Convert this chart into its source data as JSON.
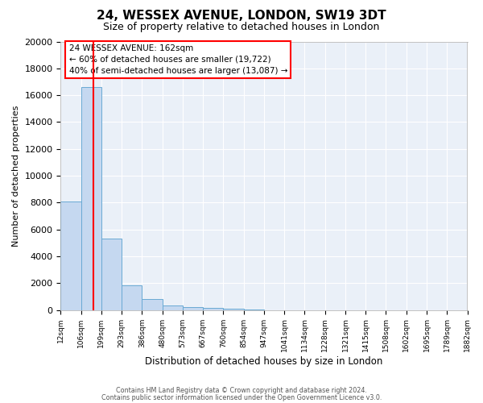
{
  "title": "24, WESSEX AVENUE, LONDON, SW19 3DT",
  "subtitle": "Size of property relative to detached houses in London",
  "xlabel": "Distribution of detached houses by size in London",
  "ylabel": "Number of detached properties",
  "bin_labels": [
    "12sqm",
    "106sqm",
    "199sqm",
    "293sqm",
    "386sqm",
    "480sqm",
    "573sqm",
    "667sqm",
    "760sqm",
    "854sqm",
    "947sqm",
    "1041sqm",
    "1134sqm",
    "1228sqm",
    "1321sqm",
    "1415sqm",
    "1508sqm",
    "1602sqm",
    "1695sqm",
    "1789sqm",
    "1882sqm"
  ],
  "bar_heights": [
    8100,
    16600,
    5300,
    1850,
    800,
    350,
    200,
    150,
    100,
    50,
    0,
    0,
    0,
    0,
    0,
    0,
    0,
    0,
    0,
    0
  ],
  "bar_color": "#c5d8f0",
  "bar_edge_color": "#6aaad4",
  "background_color": "#eaf0f8",
  "grid_color": "#ffffff",
  "ylim": [
    0,
    20000
  ],
  "yticks": [
    0,
    2000,
    4000,
    6000,
    8000,
    10000,
    12000,
    14000,
    16000,
    18000,
    20000
  ],
  "property_sqm": 162,
  "bin_edges_sqm": [
    12,
    106,
    199,
    293,
    386,
    480,
    573,
    667,
    760,
    854,
    947,
    1041,
    1134,
    1228,
    1321,
    1415,
    1508,
    1602,
    1695,
    1789,
    1882
  ],
  "annotation_title": "24 WESSEX AVENUE: 162sqm",
  "annotation_line1": "← 60% of detached houses are smaller (19,722)",
  "annotation_line2": "40% of semi-detached houses are larger (13,087) →",
  "footer1": "Contains HM Land Registry data © Crown copyright and database right 2024.",
  "footer2": "Contains public sector information licensed under the Open Government Licence v3.0."
}
